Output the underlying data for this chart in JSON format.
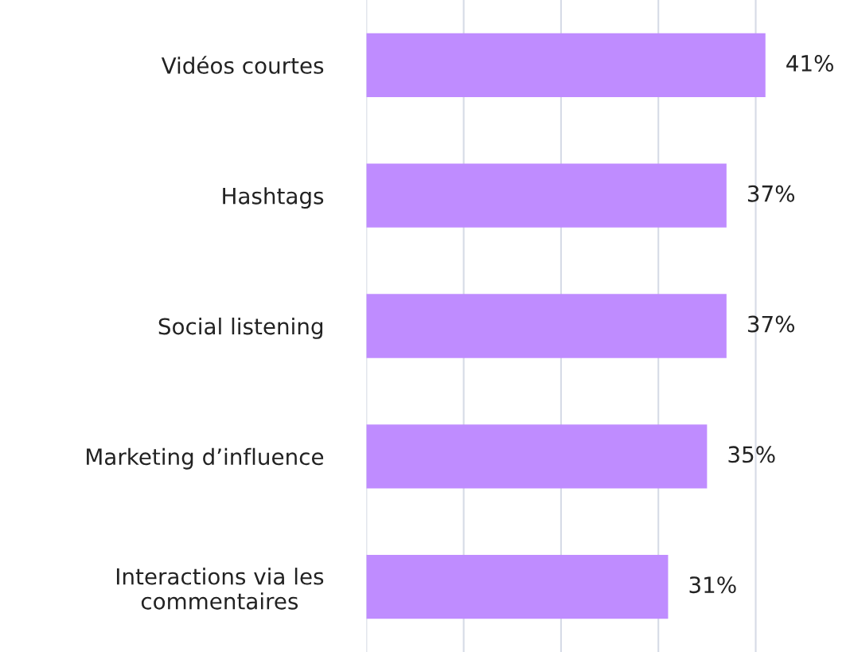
{
  "chart_data": {
    "type": "bar",
    "orientation": "horizontal",
    "categories": [
      "Vidéos courtes",
      "Hashtags",
      "Social listening",
      "Marketing d’influence",
      "Interactions via les\ncommentaires"
    ],
    "values": [
      41,
      37,
      37,
      35,
      31
    ],
    "value_labels": [
      "41%",
      "37%",
      "37%",
      "35%",
      "31%"
    ],
    "color": "#bf8cff",
    "xticks": [
      {
        "value": 0,
        "label": null
      },
      {
        "value": 10,
        "label": null
      },
      {
        "value": 20,
        "label": null
      },
      {
        "value": 30,
        "label": null
      },
      {
        "value": 40,
        "label": null
      }
    ],
    "grid": "x",
    "tick_labels": "y"
  }
}
